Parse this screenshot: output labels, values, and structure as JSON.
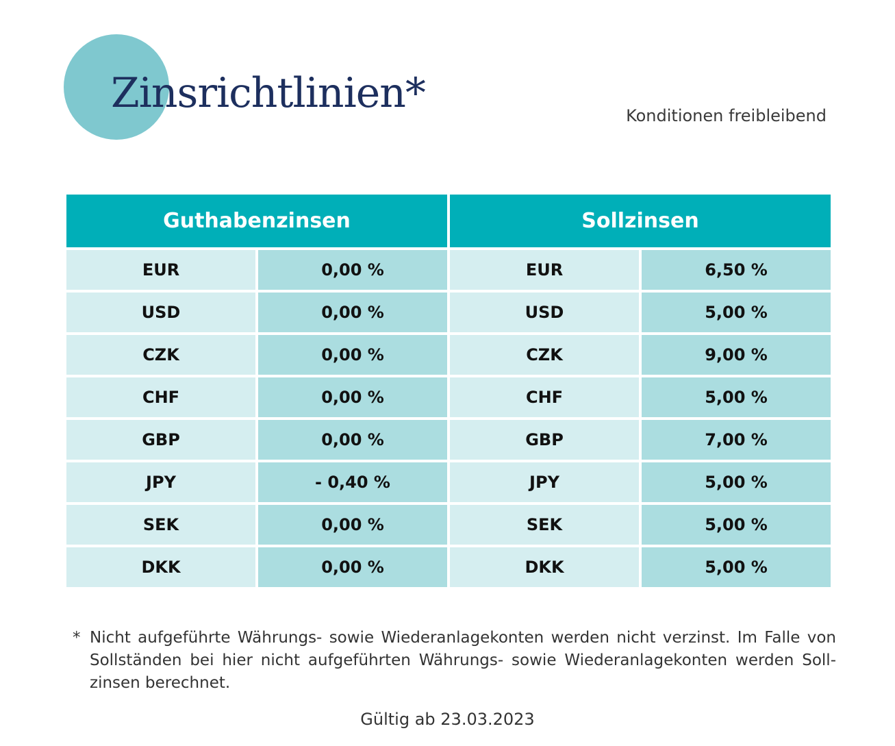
{
  "header": {
    "title": "Zinsrichtlinien*",
    "subtitle": "Konditionen freibleibend"
  },
  "colors": {
    "accent": "#00afb8",
    "circle": "#7fc8cf",
    "title": "#1d2f5e",
    "cell_light": "#d5eef0",
    "cell_dark": "#abdde0"
  },
  "table": {
    "groups": [
      "Guthabenzinsen",
      "Sollzinsen"
    ],
    "rows": [
      {
        "guthaben_currency": "EUR",
        "guthaben_rate": "0,00 %",
        "soll_currency": "EUR",
        "soll_rate": "6,50 %"
      },
      {
        "guthaben_currency": "USD",
        "guthaben_rate": "0,00 %",
        "soll_currency": "USD",
        "soll_rate": "5,00 %"
      },
      {
        "guthaben_currency": "CZK",
        "guthaben_rate": "0,00 %",
        "soll_currency": "CZK",
        "soll_rate": "9,00 %"
      },
      {
        "guthaben_currency": "CHF",
        "guthaben_rate": "0,00 %",
        "soll_currency": "CHF",
        "soll_rate": "5,00 %"
      },
      {
        "guthaben_currency": "GBP",
        "guthaben_rate": "0,00 %",
        "soll_currency": "GBP",
        "soll_rate": "7,00 %"
      },
      {
        "guthaben_currency": "JPY",
        "guthaben_rate": "- 0,40 %",
        "soll_currency": "JPY",
        "soll_rate": "5,00 %"
      },
      {
        "guthaben_currency": "SEK",
        "guthaben_rate": "0,00 %",
        "soll_currency": "SEK",
        "soll_rate": "5,00 %"
      },
      {
        "guthaben_currency": "DKK",
        "guthaben_rate": "0,00 %",
        "soll_currency": "DKK",
        "soll_rate": "5,00 %"
      }
    ]
  },
  "footnote": {
    "marker": "*",
    "text": "Nicht aufgeführte Währungs- sowie Wiederanlagekonten werden nicht verzinst. Im Falle von Sollständen bei hier nicht aufgeführten Währungs- sowie Wiederanlagekonten werden Soll­zinsen berechnet."
  },
  "validity": "Gültig ab 23.03.2023"
}
